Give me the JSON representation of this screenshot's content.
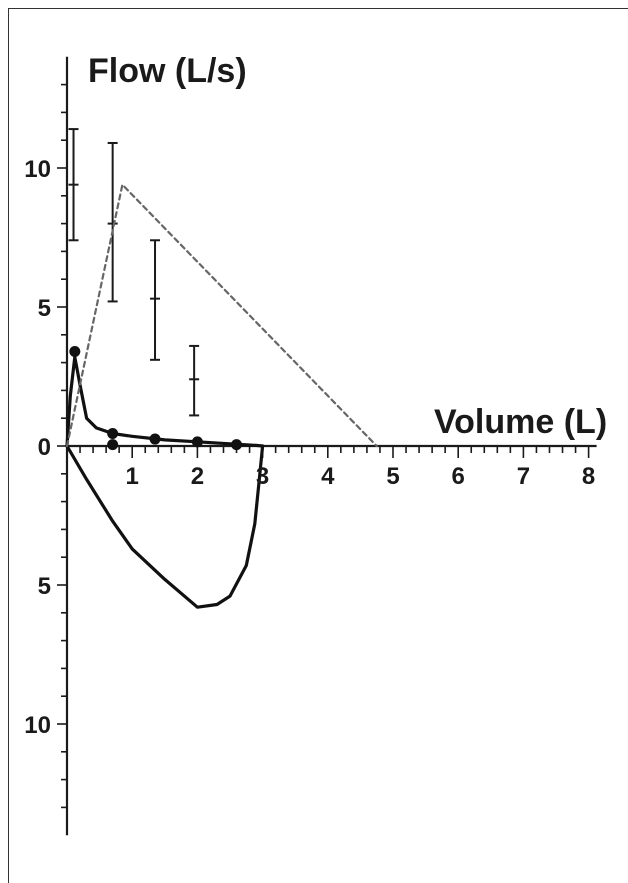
{
  "chart_data": {
    "type": "line",
    "title": "",
    "ylabel": "Flow (L/s)",
    "xlabel": "Volume (L)",
    "xlim": [
      0,
      8
    ],
    "ylim": [
      -14,
      14
    ],
    "x_ticks": [
      {
        "value": 1,
        "label": "1"
      },
      {
        "value": 2,
        "label": "2"
      },
      {
        "value": 3,
        "label": "3"
      },
      {
        "value": 4,
        "label": "4"
      },
      {
        "value": 5,
        "label": "5"
      },
      {
        "value": 6,
        "label": "6"
      },
      {
        "value": 7,
        "label": "7"
      },
      {
        "value": 8,
        "label": "8"
      }
    ],
    "y_ticks": [
      {
        "value": 10,
        "label": "10"
      },
      {
        "value": 5,
        "label": "5"
      },
      {
        "value": 0,
        "label": "0"
      },
      {
        "value": -5,
        "label": "5"
      },
      {
        "value": -10,
        "label": "10"
      }
    ],
    "grid": false,
    "colors": {
      "curve": "#111111",
      "predicted": "#666666"
    },
    "series": [
      {
        "key": "expiratory",
        "style": "solid",
        "points": [
          [
            0,
            0
          ],
          [
            0.05,
            1.8
          ],
          [
            0.12,
            3.2
          ],
          [
            0.2,
            2.2
          ],
          [
            0.3,
            1.0
          ],
          [
            0.45,
            0.65
          ],
          [
            0.7,
            0.45
          ],
          [
            1.0,
            0.35
          ],
          [
            1.5,
            0.22
          ],
          [
            2.0,
            0.15
          ],
          [
            2.5,
            0.08
          ],
          [
            2.9,
            0.02
          ],
          [
            3.0,
            0
          ]
        ]
      },
      {
        "key": "inspiratory",
        "style": "solid",
        "points": [
          [
            0,
            0
          ],
          [
            0.3,
            -1.2
          ],
          [
            0.7,
            -2.7
          ],
          [
            1.0,
            -3.7
          ],
          [
            1.5,
            -4.8
          ],
          [
            2.0,
            -5.8
          ],
          [
            2.3,
            -5.7
          ],
          [
            2.5,
            -5.4
          ],
          [
            2.75,
            -4.3
          ],
          [
            2.88,
            -2.8
          ],
          [
            2.95,
            -1.2
          ],
          [
            3.0,
            0
          ]
        ]
      },
      {
        "key": "predicted",
        "style": "dashed",
        "points": [
          [
            0,
            0
          ],
          [
            0.85,
            9.4
          ],
          [
            4.75,
            0
          ]
        ]
      }
    ],
    "markers": [
      {
        "x": 0.12,
        "y": 3.4
      },
      {
        "x": 0.7,
        "y": 0.45
      },
      {
        "x": 0.7,
        "y": 0.05
      },
      {
        "x": 1.35,
        "y": 0.25
      },
      {
        "x": 2.0,
        "y": 0.15
      },
      {
        "x": 2.6,
        "y": 0.05
      }
    ],
    "ranges": [
      {
        "x": 0.1,
        "low": 7.4,
        "mid": 9.4,
        "high": 11.4
      },
      {
        "x": 0.7,
        "low": 5.2,
        "mid": 8.0,
        "high": 10.9
      },
      {
        "x": 1.35,
        "low": 3.1,
        "mid": 5.3,
        "high": 7.4
      },
      {
        "x": 1.95,
        "low": 1.1,
        "mid": 2.4,
        "high": 3.6
      }
    ]
  }
}
